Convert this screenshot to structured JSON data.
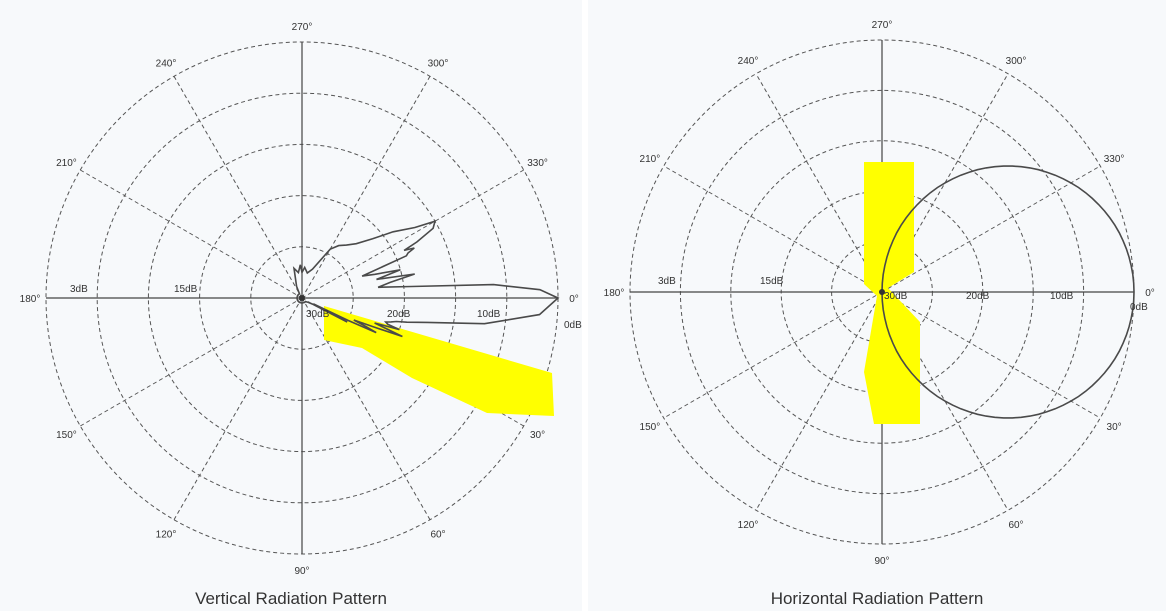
{
  "chart_data": [
    {
      "type": "polar",
      "title": "Vertical Radiation Pattern",
      "angle_ticks": [
        "0°",
        "30°",
        "60°",
        "90°",
        "120°",
        "150°",
        "180°",
        "210°",
        "240°",
        "270°",
        "300°",
        "330°"
      ],
      "radial_labels": [
        "0dB",
        "10dB",
        "20dB",
        "30dB",
        "15dB",
        "3dB"
      ],
      "angle_direction": "clockwise from right",
      "grid": true,
      "series": [
        {
          "angles": [
            0,
            4,
            8,
            11,
            13,
            14,
            15,
            16,
            17,
            18,
            19,
            20,
            21,
            22,
            23,
            24,
            25,
            26,
            27,
            28,
            30,
            35,
            45,
            60,
            90,
            120,
            150,
            180,
            210,
            240,
            245,
            255,
            262,
            267,
            270,
            275,
            282,
            290,
            300,
            305,
            310,
            315,
            320,
            324,
            328,
            330,
            332,
            334,
            335,
            336,
            337,
            338,
            340,
            342,
            344,
            346,
            348,
            350,
            352,
            354,
            356,
            358,
            360
          ],
          "r": [
            1.0,
            0.93,
            0.72,
            0.5,
            0.42,
            0.38,
            0.36,
            0.34,
            0.35,
            0.4,
            0.3,
            0.35,
            0.42,
            0.3,
            0.22,
            0.27,
            0.32,
            0.2,
            0.05,
            0.2,
            0.05,
            0.03,
            0.02,
            0.02,
            0.02,
            0.02,
            0.02,
            0.02,
            0.02,
            0.02,
            0.05,
            0.12,
            0.1,
            0.13,
            0.1,
            0.12,
            0.1,
            0.12,
            0.22,
            0.25,
            0.27,
            0.3,
            0.36,
            0.44,
            0.52,
            0.6,
            0.58,
            0.5,
            0.44,
            0.48,
            0.45,
            0.44,
            0.25,
            0.3,
            0.4,
            0.3,
            0.45,
            0.35,
            0.3,
            0.43,
            0.75,
            0.93,
            1.0
          ]
        }
      ],
      "highlight": {
        "color": "#ffff00",
        "direction_deg": 17
      }
    },
    {
      "type": "polar",
      "title": "Horizontal Radiation Pattern",
      "angle_ticks": [
        "0°",
        "30°",
        "60°",
        "90°",
        "120°",
        "150°",
        "180°",
        "210°",
        "240°",
        "270°",
        "300°",
        "330°"
      ],
      "radial_labels": [
        "0dB",
        "10dB",
        "20dB",
        "30dB",
        "15dB",
        "3dB"
      ],
      "angle_direction": "clockwise from right",
      "grid": true,
      "series": [
        {
          "shape": "offset circle",
          "angles": [
            0,
            30,
            60,
            90,
            270,
            300,
            330,
            360
          ],
          "r": [
            1.0,
            0.85,
            0.5,
            0.0,
            0.0,
            0.5,
            0.85,
            1.0
          ]
        }
      ],
      "highlight": {
        "color": "#ffff00",
        "direction_deg": 90
      }
    }
  ],
  "colors": {
    "grid": "#555555",
    "curve": "#4a4a4a",
    "highlight": "#ffff00"
  }
}
